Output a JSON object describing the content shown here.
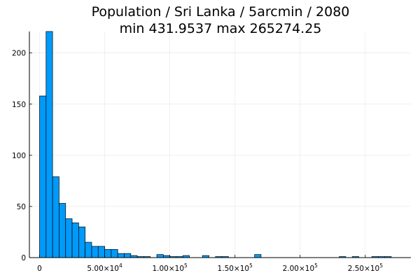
{
  "chart_data": {
    "type": "bar",
    "title": "Population / Sri Lanka / 5arcmin / 2080",
    "subtitle": "min 431.9537  max 265274.25",
    "xlabel": "",
    "ylabel": "",
    "xlim": [
      -7800,
      285000
    ],
    "ylim": [
      0,
      221
    ],
    "grid": true,
    "legend": "none",
    "bar_color": "#009af9",
    "bin_width": 5000,
    "x_ticks": [
      {
        "value": 0,
        "mantissa": "0",
        "exponent": ""
      },
      {
        "value": 50000,
        "mantissa": "5.00×10",
        "exponent": "4"
      },
      {
        "value": 100000,
        "mantissa": "1.00×10",
        "exponent": "5"
      },
      {
        "value": 150000,
        "mantissa": "1.50×10",
        "exponent": "5"
      },
      {
        "value": 200000,
        "mantissa": "2.00×10",
        "exponent": "5"
      },
      {
        "value": 250000,
        "mantissa": "2.50×10",
        "exponent": "5"
      }
    ],
    "y_ticks": [
      0,
      50,
      100,
      150,
      200
    ],
    "bins": [
      {
        "x0": 0,
        "count": 158
      },
      {
        "x0": 5000,
        "count": 221
      },
      {
        "x0": 10000,
        "count": 79
      },
      {
        "x0": 15000,
        "count": 53
      },
      {
        "x0": 20000,
        "count": 38
      },
      {
        "x0": 25000,
        "count": 34
      },
      {
        "x0": 30000,
        "count": 30
      },
      {
        "x0": 35000,
        "count": 15
      },
      {
        "x0": 40000,
        "count": 11
      },
      {
        "x0": 45000,
        "count": 11
      },
      {
        "x0": 50000,
        "count": 8
      },
      {
        "x0": 55000,
        "count": 8
      },
      {
        "x0": 60000,
        "count": 4
      },
      {
        "x0": 65000,
        "count": 4
      },
      {
        "x0": 70000,
        "count": 2
      },
      {
        "x0": 75000,
        "count": 1
      },
      {
        "x0": 80000,
        "count": 1
      },
      {
        "x0": 90000,
        "count": 3
      },
      {
        "x0": 95000,
        "count": 2
      },
      {
        "x0": 100000,
        "count": 1
      },
      {
        "x0": 105000,
        "count": 1
      },
      {
        "x0": 110000,
        "count": 2
      },
      {
        "x0": 125000,
        "count": 2
      },
      {
        "x0": 135000,
        "count": 1
      },
      {
        "x0": 140000,
        "count": 1
      },
      {
        "x0": 165000,
        "count": 3
      },
      {
        "x0": 230000,
        "count": 1
      },
      {
        "x0": 240000,
        "count": 1
      },
      {
        "x0": 255000,
        "count": 1
      },
      {
        "x0": 260000,
        "count": 1
      },
      {
        "x0": 265000,
        "count": 1
      }
    ]
  }
}
